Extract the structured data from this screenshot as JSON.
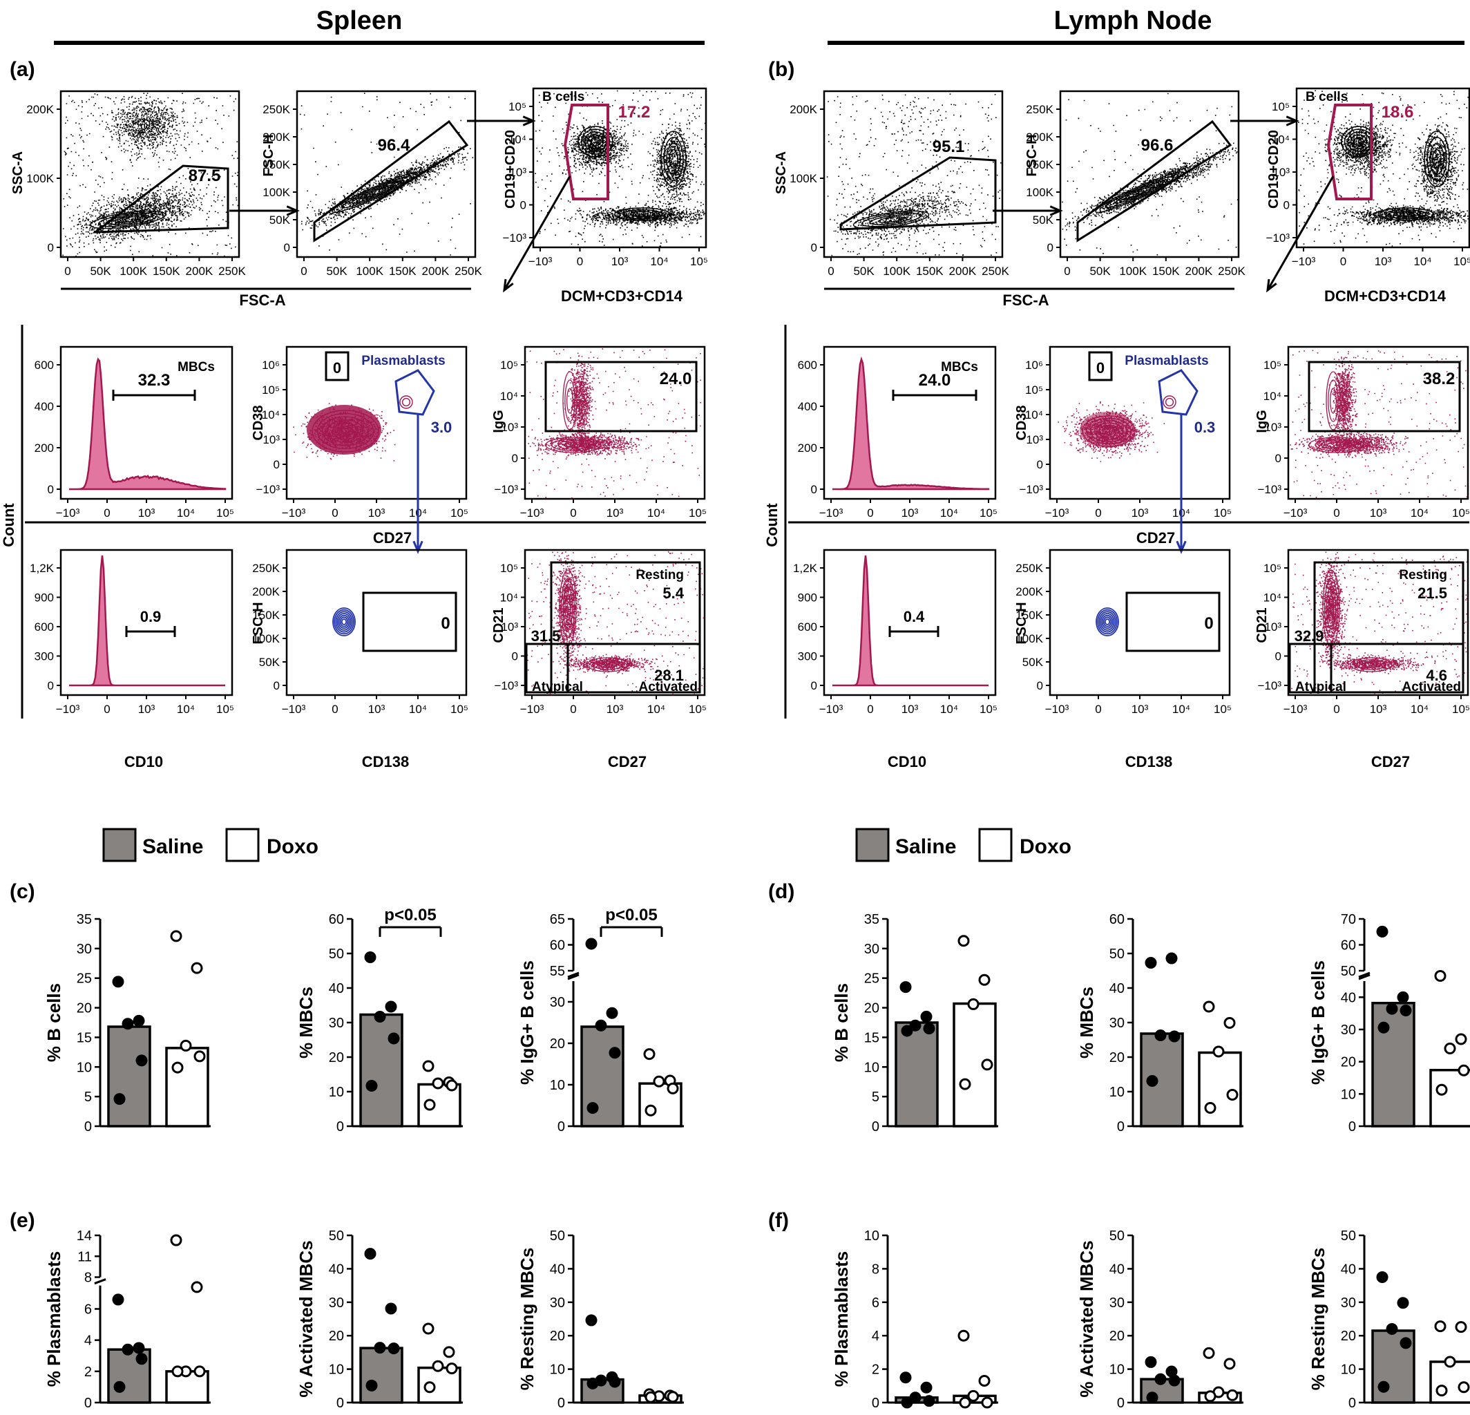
{
  "headers": {
    "spleen": "Spleen",
    "lymph_node": "Lymph Node"
  },
  "panel_letters": [
    "(a)",
    "(b)",
    "(c)",
    "(d)",
    "(e)",
    "(f)"
  ],
  "legend": {
    "saline": "Saline",
    "doxo": "Doxo"
  },
  "colors": {
    "saline_fill": "#878380",
    "doxo_fill": "#ffffff",
    "crimson": "#a3184f",
    "pink": "#d9558a",
    "navy": "#1f2a8a",
    "blue": "#2335a8"
  },
  "axis_labels": {
    "ssc_a": "SSC-A",
    "fsc_h": "FSC-H",
    "fsc_a": "FSC-A",
    "cd19": "CD19+CD20",
    "dcm": "DCM+CD3+CD14",
    "count": "Count",
    "cd38": "CD38",
    "igg": "IgG",
    "cd27": "CD27",
    "cd10": "CD10",
    "cd138": "CD138",
    "cd21": "CD21"
  },
  "gate_labels": {
    "b_cells": "B cells",
    "mbcs": "MBCs",
    "plasmablasts": "Plasmablasts",
    "resting": "Resting",
    "atypical": "Atypical",
    "activated": "Activated"
  },
  "ticks": {
    "linear": [
      "0",
      "50K",
      "100K",
      "150K",
      "200K",
      "250K"
    ],
    "linear_ssc": [
      "0",
      "100K",
      "200K"
    ],
    "count_a1": [
      "0",
      "200",
      "400",
      "600"
    ],
    "count_a2": [
      "0",
      "300",
      "600",
      "900",
      "1,2K"
    ],
    "log": [
      "−10³",
      "0",
      "10³",
      "10⁴",
      "10⁵"
    ],
    "log_y": [
      "−10³",
      "0",
      "10³",
      "10⁴",
      "10⁵"
    ]
  },
  "spleen_values": {
    "fsc_gate": "87.5",
    "singlets": "96.4",
    "b_cells": "17.2",
    "mbcs": "32.3",
    "plasma_neg": "0",
    "plasmablasts": "3.0",
    "igg": "24.0",
    "cd10": "0.9",
    "cd138": "0",
    "resting": "5.4",
    "atypical": "31.5",
    "activated": "28.1"
  },
  "lymph_values": {
    "fsc_gate": "95.1",
    "singlets": "96.6",
    "b_cells": "18.6",
    "mbcs": "24.0",
    "plasma_neg": "0",
    "plasmablasts": "0.3",
    "igg": "38.2",
    "cd10": "0.4",
    "cd138": "0",
    "resting": "21.5",
    "atypical": "32.9",
    "activated": "4.6"
  },
  "chart_data": [
    {
      "type": "bar",
      "panel": "(c)",
      "ylabel": "% B cells",
      "ylim": [
        0,
        35
      ],
      "yticks": [
        0,
        5,
        10,
        15,
        20,
        25,
        30,
        35
      ],
      "categories": [
        "Saline",
        "Doxo"
      ],
      "values": [
        16.8,
        13.2
      ],
      "points": [
        [
          24.4,
          17.8,
          17.3,
          11.1,
          4.6
        ],
        [
          32.1,
          26.7,
          13.6,
          11.8,
          9.9
        ]
      ]
    },
    {
      "type": "bar",
      "panel": "(c)",
      "ylabel": "% MBCs",
      "ylim": [
        0,
        60
      ],
      "yticks": [
        0,
        10,
        20,
        30,
        40,
        50,
        60
      ],
      "categories": [
        "Saline",
        "Doxo"
      ],
      "values": [
        32.3,
        12.1
      ],
      "points": [
        [
          48.9,
          34.6,
          31.7,
          25.4,
          11.7
        ],
        [
          17.4,
          12.7,
          12.4,
          11.8,
          6.2
        ]
      ],
      "annotation": "p<0.05"
    },
    {
      "type": "bar",
      "panel": "(c)",
      "ylabel": "% IgG+ B cells",
      "ylim": [
        0,
        65
      ],
      "yticks": [
        0,
        10,
        20,
        30,
        55,
        60,
        65
      ],
      "break": [
        35,
        55
      ],
      "categories": [
        "Saline",
        "Doxo"
      ],
      "values": [
        24.0,
        10.3
      ],
      "points": [
        [
          60.2,
          27.3,
          24.3,
          17.7,
          4.4
        ],
        [
          17.4,
          11.0,
          10.8,
          9.1,
          3.8
        ]
      ],
      "annotation": "p<0.05"
    },
    {
      "type": "bar",
      "panel": "(d)",
      "ylabel": "% B cells",
      "ylim": [
        0,
        35
      ],
      "yticks": [
        0,
        5,
        10,
        15,
        20,
        25,
        30,
        35
      ],
      "categories": [
        "Saline",
        "Doxo"
      ],
      "values": [
        17.5,
        20.7
      ],
      "points": [
        [
          23.5,
          18.5,
          17.0,
          16.5,
          16.1
        ],
        [
          31.3,
          24.7,
          20.6,
          10.4,
          7.1
        ]
      ]
    },
    {
      "type": "bar",
      "panel": "(d)",
      "ylabel": "% MBCs",
      "ylim": [
        0,
        60
      ],
      "yticks": [
        0,
        10,
        20,
        30,
        40,
        50,
        60
      ],
      "categories": [
        "Saline",
        "Doxo"
      ],
      "values": [
        26.8,
        21.3
      ],
      "points": [
        [
          47.3,
          48.6,
          26.3,
          26.0,
          13.1
        ],
        [
          34.6,
          29.9,
          21.6,
          9.1,
          5.3
        ]
      ]
    },
    {
      "type": "bar",
      "panel": "(d)",
      "ylabel": "% IgG+ B cells",
      "ylim": [
        0,
        70
      ],
      "yticks": [
        0,
        10,
        20,
        30,
        40,
        50,
        60,
        70
      ],
      "break": [
        45,
        50
      ],
      "categories": [
        "Saline",
        "Doxo"
      ],
      "values": [
        38.2,
        17.4
      ],
      "points": [
        [
          65.1,
          40.0,
          36.4,
          35.9,
          30.6
        ],
        [
          48.2,
          27.0,
          24.1,
          17.3,
          11.3
        ]
      ]
    },
    {
      "type": "bar",
      "panel": "(e)",
      "ylabel": "% Plasmablasts",
      "ylim": [
        0,
        14
      ],
      "yticks": [
        0,
        2,
        4,
        6,
        8,
        11,
        14
      ],
      "break": [
        7.5,
        8
      ],
      "categories": [
        "Saline",
        "Doxo"
      ],
      "values": [
        3.4,
        2.0
      ],
      "points": [
        [
          6.6,
          3.5,
          3.4,
          2.8,
          1.0
        ],
        [
          13.3,
          7.4,
          2.0,
          2.0,
          2.0
        ]
      ]
    },
    {
      "type": "bar",
      "panel": "(e)",
      "ylabel": "% Activated MBCs",
      "ylim": [
        0,
        50
      ],
      "yticks": [
        0,
        10,
        20,
        30,
        40,
        50
      ],
      "categories": [
        "Saline",
        "Doxo"
      ],
      "values": [
        16.3,
        10.4
      ],
      "points": [
        [
          44.5,
          28.1,
          16.4,
          16.2,
          5.1
        ],
        [
          22.1,
          15.1,
          10.9,
          10.2,
          4.6
        ]
      ]
    },
    {
      "type": "bar",
      "panel": "(e)",
      "ylabel": "% Resting MBCs",
      "ylim": [
        0,
        50
      ],
      "yticks": [
        0,
        10,
        20,
        30,
        40,
        50
      ],
      "categories": [
        "Saline",
        "Doxo"
      ],
      "values": [
        6.9,
        2.1
      ],
      "points": [
        [
          24.6,
          7.6,
          6.6,
          6.2,
          5.7
        ],
        [
          2.5,
          2.1,
          1.9,
          1.7,
          1.6
        ]
      ]
    },
    {
      "type": "bar",
      "panel": "(f)",
      "ylabel": "% Plasmablasts",
      "ylim": [
        0,
        10
      ],
      "yticks": [
        0,
        2,
        4,
        6,
        8,
        10
      ],
      "categories": [
        "Saline",
        "Doxo"
      ],
      "values": [
        0.3,
        0.4
      ],
      "points": [
        [
          1.5,
          0.9,
          0.3,
          0.1,
          0.0
        ],
        [
          4.0,
          1.3,
          0.4,
          0.0,
          0.0
        ]
      ]
    },
    {
      "type": "bar",
      "panel": "(f)",
      "ylabel": "% Activated MBCs",
      "ylim": [
        0,
        50
      ],
      "yticks": [
        0,
        10,
        20,
        30,
        40,
        50
      ],
      "categories": [
        "Saline",
        "Doxo"
      ],
      "values": [
        7.0,
        2.9
      ],
      "points": [
        [
          12.1,
          9.3,
          7.0,
          6.6,
          1.5
        ],
        [
          14.8,
          11.6,
          3.1,
          2.2,
          1.9
        ]
      ]
    },
    {
      "type": "bar",
      "panel": "(f)",
      "ylabel": "% Resting MBCs",
      "ylim": [
        0,
        50
      ],
      "yticks": [
        0,
        10,
        20,
        30,
        40,
        50
      ],
      "categories": [
        "Saline",
        "Doxo"
      ],
      "values": [
        21.5,
        12.2
      ],
      "points": [
        [
          37.5,
          29.8,
          22.0,
          17.8,
          4.7
        ],
        [
          22.8,
          22.6,
          12.2,
          4.6,
          3.6
        ]
      ]
    }
  ]
}
